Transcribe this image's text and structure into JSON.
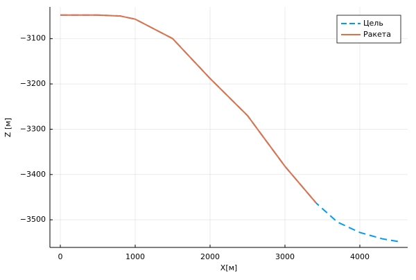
{
  "chart_data": {
    "type": "line",
    "xlabel": "X[м]",
    "ylabel": "Z [м]",
    "xlim": [
      -139,
      4639
    ],
    "ylim": [
      -3561,
      -3030
    ],
    "xticks": [
      0,
      1000,
      2000,
      3000,
      4000
    ],
    "yticks": [
      {
        "value": -3100,
        "label": "−3100"
      },
      {
        "value": -3200,
        "label": "−3200"
      },
      {
        "value": -3300,
        "label": "−3300"
      },
      {
        "value": -3400,
        "label": "−3400"
      },
      {
        "value": -3500,
        "label": "−3500"
      }
    ],
    "grid": true,
    "legend": "top-right",
    "series": [
      {
        "name": "Цель",
        "color": "#009af9",
        "dash": true,
        "x": [
          0,
          500,
          800,
          1000,
          1500,
          2000,
          2500,
          3000,
          3417,
          3700,
          4000,
          4300,
          4550
        ],
        "values": [
          -3048,
          -3048,
          -3050,
          -3057,
          -3100,
          -3188,
          -3270,
          -3382,
          -3463,
          -3505,
          -3528,
          -3542,
          -3549
        ]
      },
      {
        "name": "Ракета",
        "color": "#e26f46",
        "dash": false,
        "x": [
          0,
          500,
          800,
          1000,
          1500,
          2000,
          2500,
          3000,
          3417
        ],
        "values": [
          -3048,
          -3048,
          -3050,
          -3057,
          -3100,
          -3188,
          -3270,
          -3382,
          -3463
        ]
      }
    ]
  }
}
